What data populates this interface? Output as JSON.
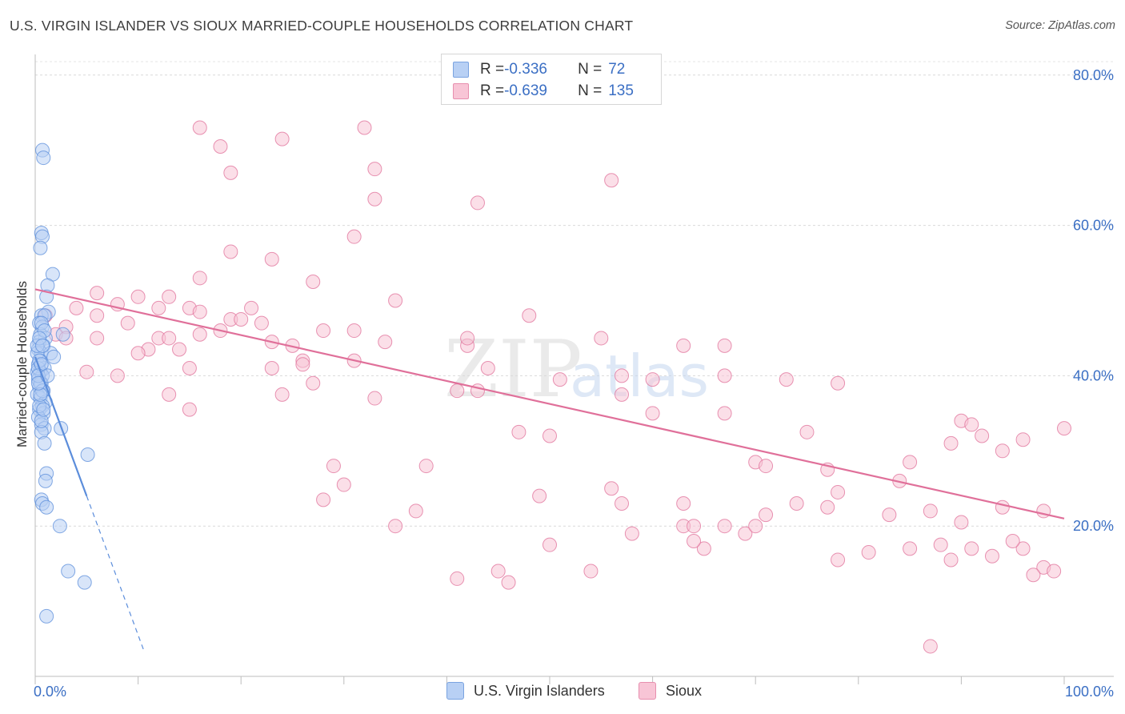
{
  "title": "U.S. VIRGIN ISLANDER VS SIOUX MARRIED-COUPLE HOUSEHOLDS CORRELATION CHART",
  "source": "Source: ZipAtlas.com",
  "watermark": {
    "zip": "ZIP",
    "atlas": "atlas"
  },
  "stats": [
    {
      "r_label": "R = ",
      "r_value": "-0.336",
      "n_label": "N = ",
      "n_value": "72",
      "color": "#b8d0f4",
      "border": "#7aa3e0"
    },
    {
      "r_label": "R = ",
      "r_value": "-0.639",
      "n_label": "N = ",
      "n_value": "135",
      "color": "#f8c5d6",
      "border": "#e78faf"
    }
  ],
  "legend": [
    {
      "label": "U.S. Virgin Islanders",
      "color": "#b8d0f4",
      "border": "#7aa3e0"
    },
    {
      "label": "Sioux",
      "color": "#f8c5d6",
      "border": "#e78faf"
    }
  ],
  "chart_data": {
    "type": "scatter",
    "title": "U.S. VIRGIN ISLANDER VS SIOUX MARRIED-COUPLE HOUSEHOLDS CORRELATION CHART",
    "xlabel": "",
    "ylabel": "Married-couple Households",
    "xlim": [
      0,
      100
    ],
    "ylim": [
      0,
      82
    ],
    "x_tick_labels": [
      "0.0%",
      "100.0%"
    ],
    "y_ticks": [
      20,
      40,
      60,
      80
    ],
    "y_tick_labels": [
      "20.0%",
      "40.0%",
      "60.0%",
      "80.0%"
    ],
    "grid": true,
    "series": [
      {
        "name": "U.S. Virgin Islanders",
        "color": "#5b8ddb",
        "fill": "#b8d0f4",
        "trend": {
          "x0": 0,
          "y0": 42.5,
          "x1": 5,
          "y1": 24,
          "dashed_to_x": 10.6
        },
        "points": [
          [
            0.7,
            70
          ],
          [
            0.8,
            69
          ],
          [
            0.6,
            59
          ],
          [
            0.7,
            58.5
          ],
          [
            0.5,
            57
          ],
          [
            1.7,
            53.5
          ],
          [
            1.2,
            52
          ],
          [
            1.1,
            50.5
          ],
          [
            1.3,
            48.5
          ],
          [
            0.6,
            48
          ],
          [
            0.9,
            48
          ],
          [
            0.4,
            47
          ],
          [
            0.7,
            46.5
          ],
          [
            0.5,
            45.5
          ],
          [
            2.7,
            45.5
          ],
          [
            1.0,
            45
          ],
          [
            0.4,
            44.5
          ],
          [
            0.8,
            44
          ],
          [
            0.3,
            43.5
          ],
          [
            0.6,
            43
          ],
          [
            1.5,
            43
          ],
          [
            1.8,
            42.5
          ],
          [
            0.5,
            42
          ],
          [
            0.3,
            41.5
          ],
          [
            0.9,
            41
          ],
          [
            0.2,
            40.5
          ],
          [
            0.5,
            40.5
          ],
          [
            0.7,
            40
          ],
          [
            0.3,
            39.5
          ],
          [
            0.6,
            39
          ],
          [
            0.4,
            38.5
          ],
          [
            0.8,
            38
          ],
          [
            0.2,
            37.5
          ],
          [
            0.5,
            37
          ],
          [
            1.0,
            36.5
          ],
          [
            0.7,
            36
          ],
          [
            0.4,
            35.5
          ],
          [
            0.8,
            35
          ],
          [
            0.3,
            34.5
          ],
          [
            0.6,
            33.5
          ],
          [
            2.5,
            33
          ],
          [
            0.9,
            33
          ],
          [
            0.6,
            32.5
          ],
          [
            5.1,
            29.5
          ],
          [
            1.1,
            27
          ],
          [
            1.0,
            26
          ],
          [
            0.6,
            23.5
          ],
          [
            0.7,
            23
          ],
          [
            1.1,
            22.5
          ],
          [
            2.4,
            20
          ],
          [
            3.2,
            14
          ],
          [
            4.8,
            12.5
          ],
          [
            1.1,
            8
          ],
          [
            0.3,
            41
          ],
          [
            0.5,
            39
          ],
          [
            0.7,
            38
          ],
          [
            0.4,
            36
          ],
          [
            0.6,
            34
          ],
          [
            0.9,
            31
          ],
          [
            0.2,
            43
          ],
          [
            0.4,
            42
          ],
          [
            0.6,
            41.5
          ],
          [
            0.3,
            40
          ],
          [
            0.5,
            37.5
          ],
          [
            0.8,
            35.5
          ],
          [
            0.2,
            44
          ],
          [
            0.6,
            47
          ],
          [
            0.9,
            46
          ],
          [
            0.4,
            45
          ],
          [
            0.7,
            44
          ],
          [
            0.3,
            39
          ],
          [
            1.2,
            40
          ]
        ]
      },
      {
        "name": "Sioux",
        "color": "#e0709a",
        "fill": "#f8c5d6",
        "trend": {
          "x0": 0,
          "y0": 51.5,
          "x1": 100,
          "y1": 21
        },
        "points": [
          [
            16,
            73
          ],
          [
            32,
            73
          ],
          [
            24,
            71.5
          ],
          [
            18,
            70.5
          ],
          [
            33,
            67.5
          ],
          [
            56,
            66
          ],
          [
            19,
            67
          ],
          [
            33,
            63.5
          ],
          [
            43,
            63
          ],
          [
            31,
            58.5
          ],
          [
            19,
            56.5
          ],
          [
            23,
            55.5
          ],
          [
            16,
            53
          ],
          [
            27,
            52.5
          ],
          [
            6,
            51
          ],
          [
            10,
            50.5
          ],
          [
            13,
            50.5
          ],
          [
            35,
            50
          ],
          [
            8,
            49.5
          ],
          [
            12,
            49
          ],
          [
            15,
            49
          ],
          [
            16,
            48.5
          ],
          [
            21,
            49
          ],
          [
            4,
            49
          ],
          [
            1,
            48
          ],
          [
            6,
            48
          ],
          [
            48,
            48
          ],
          [
            19,
            47.5
          ],
          [
            20,
            47.5
          ],
          [
            22,
            47
          ],
          [
            9,
            47
          ],
          [
            3,
            46.5
          ],
          [
            2,
            45.5
          ],
          [
            18,
            46
          ],
          [
            31,
            46
          ],
          [
            28,
            46
          ],
          [
            16,
            45.5
          ],
          [
            12,
            45
          ],
          [
            13,
            45
          ],
          [
            42,
            44
          ],
          [
            55,
            45
          ],
          [
            6,
            45
          ],
          [
            3,
            45
          ],
          [
            42,
            45
          ],
          [
            34,
            44.5
          ],
          [
            23,
            44.5
          ],
          [
            63,
            44
          ],
          [
            67,
            44
          ],
          [
            25,
            44
          ],
          [
            11,
            43.5
          ],
          [
            14,
            43.5
          ],
          [
            10,
            43
          ],
          [
            26,
            42
          ],
          [
            31,
            42
          ],
          [
            26,
            41.5
          ],
          [
            23,
            41
          ],
          [
            44,
            41
          ],
          [
            5,
            40.5
          ],
          [
            15,
            41
          ],
          [
            8,
            40
          ],
          [
            51,
            39.5
          ],
          [
            60,
            39.5
          ],
          [
            73,
            39.5
          ],
          [
            78,
            39
          ],
          [
            67,
            40
          ],
          [
            57,
            40
          ],
          [
            27,
            39
          ],
          [
            43,
            38
          ],
          [
            57,
            37.5
          ],
          [
            24,
            37.5
          ],
          [
            33,
            37
          ],
          [
            41,
            38
          ],
          [
            13,
            37.5
          ],
          [
            15,
            35.5
          ],
          [
            67,
            35
          ],
          [
            60,
            35
          ],
          [
            90,
            34
          ],
          [
            91,
            33.5
          ],
          [
            100,
            33
          ],
          [
            75,
            32.5
          ],
          [
            92,
            32
          ],
          [
            96,
            31.5
          ],
          [
            50,
            32
          ],
          [
            47,
            32.5
          ],
          [
            89,
            31
          ],
          [
            94,
            30
          ],
          [
            85,
            28.5
          ],
          [
            70,
            28.5
          ],
          [
            71,
            28
          ],
          [
            77,
            27.5
          ],
          [
            29,
            28
          ],
          [
            38,
            28
          ],
          [
            30,
            25.5
          ],
          [
            56,
            25
          ],
          [
            49,
            24
          ],
          [
            78,
            24.5
          ],
          [
            84,
            26
          ],
          [
            57,
            23
          ],
          [
            63,
            23
          ],
          [
            74,
            23
          ],
          [
            77,
            22.5
          ],
          [
            28,
            23.5
          ],
          [
            98,
            22
          ],
          [
            83,
            21.5
          ],
          [
            87,
            22
          ],
          [
            94,
            22.5
          ],
          [
            71,
            21.5
          ],
          [
            63,
            20
          ],
          [
            67,
            20
          ],
          [
            90,
            20.5
          ],
          [
            35,
            20
          ],
          [
            64,
            20
          ],
          [
            50,
            17.5
          ],
          [
            65,
            17
          ],
          [
            88,
            17.5
          ],
          [
            96,
            17
          ],
          [
            95,
            18
          ],
          [
            98,
            14.5
          ],
          [
            99,
            14
          ],
          [
            91,
            17
          ],
          [
            97,
            13.5
          ],
          [
            45,
            14
          ],
          [
            46,
            12.5
          ],
          [
            54,
            14
          ],
          [
            64,
            18
          ],
          [
            69,
            19
          ],
          [
            81,
            16.5
          ],
          [
            85,
            17
          ],
          [
            89,
            15.5
          ],
          [
            78,
            15.5
          ],
          [
            93,
            16
          ],
          [
            87,
            4
          ],
          [
            41,
            13
          ],
          [
            70,
            20
          ],
          [
            58,
            19
          ],
          [
            37,
            22
          ]
        ]
      }
    ]
  }
}
